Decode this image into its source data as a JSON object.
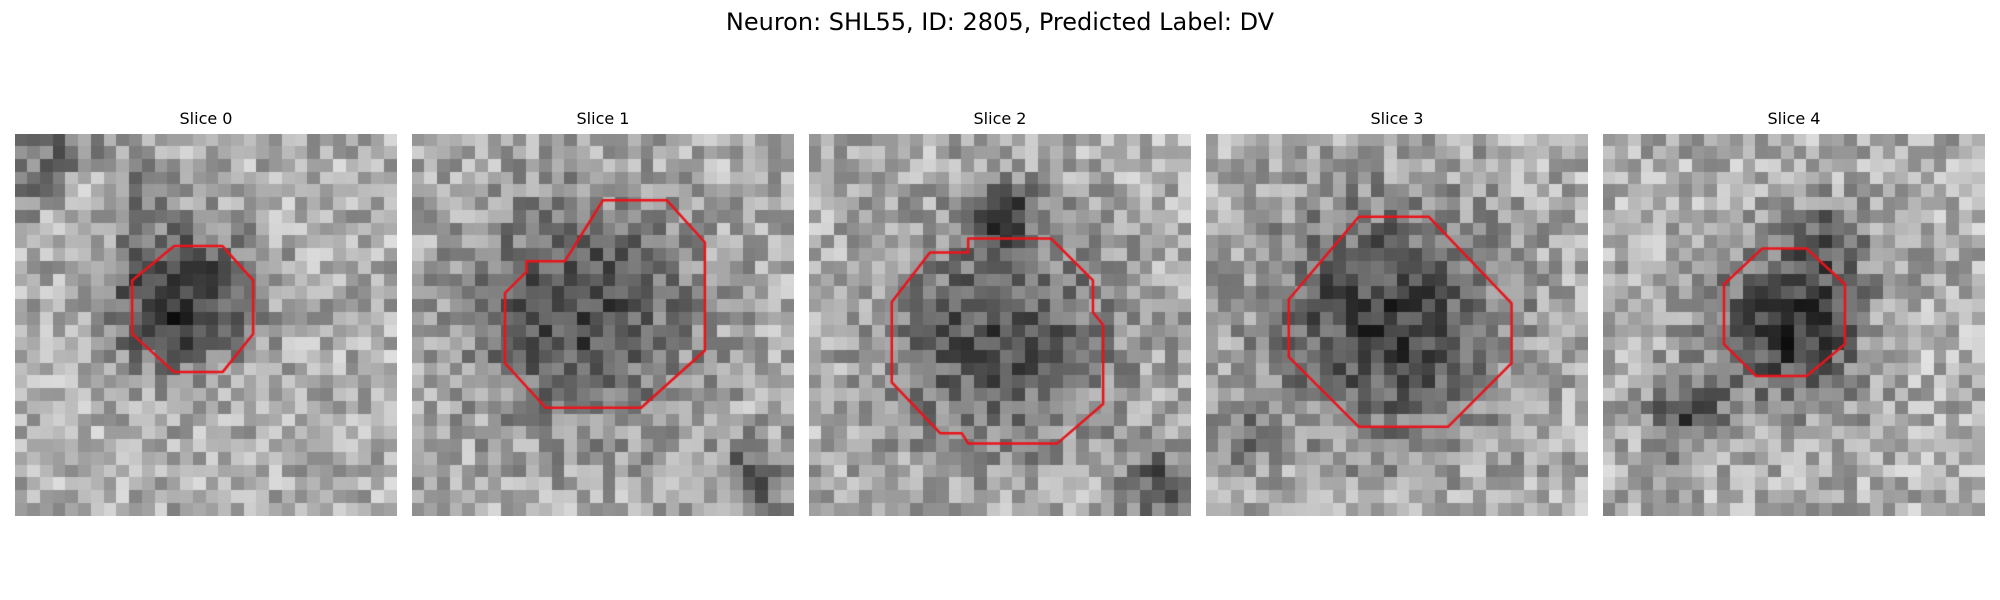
{
  "figure": {
    "title": "Neuron: SHL55, ID: 2805, Predicted Label: DV"
  },
  "panels": [
    {
      "title": "Slice 0",
      "seed": 11,
      "dark_blobs": [
        {
          "cx": 13.0,
          "cy": 13.0,
          "r": 4.0,
          "strength": 130
        },
        {
          "cx": 2.5,
          "cy": 2.0,
          "r": 3.0,
          "strength": 70
        },
        {
          "cx": 10.0,
          "cy": 4.0,
          "r": 1.5,
          "strength": 55
        }
      ],
      "light_blobs": [
        {
          "cx": 5.0,
          "cy": 5.0,
          "r": 2.0,
          "strength": 40
        }
      ],
      "outline": [
        [
          12.5,
          8.8
        ],
        [
          16.3,
          8.8
        ],
        [
          18.7,
          11.5
        ],
        [
          18.7,
          15.7
        ],
        [
          16.3,
          18.7
        ],
        [
          12.5,
          18.7
        ],
        [
          9.2,
          15.7
        ],
        [
          9.2,
          11.5
        ]
      ],
      "outline_color": "#e8141b"
    },
    {
      "title": "Slice 1",
      "seed": 23,
      "dark_blobs": [
        {
          "cx": 13.3,
          "cy": 14.0,
          "r": 6.3,
          "strength": 100
        },
        {
          "cx": 27.0,
          "cy": 27.0,
          "r": 2.0,
          "strength": 90
        }
      ],
      "light_blobs": [],
      "outline": [
        [
          12.0,
          10.0
        ],
        [
          15.0,
          5.2
        ],
        [
          20.0,
          5.2
        ],
        [
          23.0,
          8.5
        ],
        [
          23.0,
          17.0
        ],
        [
          18.0,
          21.5
        ],
        [
          10.5,
          21.5
        ],
        [
          7.3,
          18.0
        ],
        [
          7.3,
          12.5
        ],
        [
          9.0,
          10.8
        ],
        [
          9.0,
          10.0
        ]
      ],
      "outline_color": "#e8141b"
    },
    {
      "title": "Slice 2",
      "seed": 37,
      "dark_blobs": [
        {
          "cx": 15.0,
          "cy": 16.0,
          "r": 6.3,
          "strength": 95
        },
        {
          "cx": 15.0,
          "cy": 6.0,
          "r": 1.6,
          "strength": 120
        },
        {
          "cx": 27.5,
          "cy": 27.5,
          "r": 2.0,
          "strength": 90
        }
      ],
      "light_blobs": [],
      "outline": [
        [
          12.5,
          9.3
        ],
        [
          12.5,
          8.2
        ],
        [
          19.0,
          8.2
        ],
        [
          22.3,
          11.5
        ],
        [
          22.3,
          14.0
        ],
        [
          23.1,
          15.0
        ],
        [
          23.1,
          21.2
        ],
        [
          19.5,
          24.3
        ],
        [
          12.5,
          24.3
        ],
        [
          12.0,
          23.5
        ],
        [
          10.3,
          23.5
        ],
        [
          6.5,
          19.5
        ],
        [
          6.5,
          13.2
        ],
        [
          9.5,
          9.3
        ]
      ],
      "outline_color": "#e8141b"
    },
    {
      "title": "Slice 3",
      "seed": 51,
      "dark_blobs": [
        {
          "cx": 14.3,
          "cy": 14.7,
          "r": 6.4,
          "strength": 115
        },
        {
          "cx": 2.5,
          "cy": 24.0,
          "r": 2.0,
          "strength": 55
        }
      ],
      "light_blobs": [],
      "outline": [
        [
          12.0,
          6.5
        ],
        [
          17.5,
          6.5
        ],
        [
          24.0,
          13.3
        ],
        [
          24.0,
          18.0
        ],
        [
          19.0,
          23.0
        ],
        [
          12.0,
          23.0
        ],
        [
          6.5,
          17.5
        ],
        [
          6.5,
          13.0
        ]
      ],
      "outline_color": "#e8141b"
    },
    {
      "title": "Slice 4",
      "seed": 67,
      "dark_blobs": [
        {
          "cx": 15.0,
          "cy": 15.0,
          "r": 4.3,
          "strength": 125
        },
        {
          "cx": 6.5,
          "cy": 22.0,
          "r": 2.2,
          "strength": 95
        },
        {
          "cx": 17.5,
          "cy": 8.0,
          "r": 2.0,
          "strength": 60
        }
      ],
      "light_blobs": [
        {
          "cx": 23.0,
          "cy": 16.0,
          "r": 2.0,
          "strength": 40
        }
      ],
      "outline": [
        [
          12.5,
          9.0
        ],
        [
          16.0,
          9.0
        ],
        [
          19.0,
          11.8
        ],
        [
          19.0,
          16.5
        ],
        [
          16.0,
          19.0
        ],
        [
          12.0,
          19.0
        ],
        [
          9.5,
          16.5
        ],
        [
          9.5,
          11.8
        ]
      ],
      "outline_color": "#e8141b"
    }
  ]
}
